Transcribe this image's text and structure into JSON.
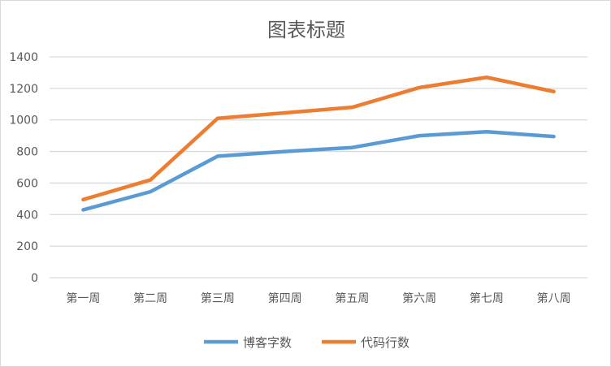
{
  "chart_data": {
    "type": "line",
    "title": "图表标题",
    "xlabel": "",
    "ylabel": "",
    "categories": [
      "第一周",
      "第二周",
      "第三周",
      "第四周",
      "第五周",
      "第六周",
      "第七周",
      "第八周"
    ],
    "series": [
      {
        "name": "博客字数",
        "color": "#5b9bd5",
        "values": [
          430,
          545,
          770,
          800,
          825,
          900,
          925,
          895
        ]
      },
      {
        "name": "代码行数",
        "color": "#ed7d31",
        "values": [
          495,
          620,
          1010,
          1045,
          1080,
          1205,
          1270,
          1180
        ]
      }
    ],
    "ylim": [
      0,
      1400
    ],
    "yticks": [
      0,
      200,
      400,
      600,
      800,
      1000,
      1200,
      1400
    ],
    "grid": true,
    "legend": "bottom"
  }
}
